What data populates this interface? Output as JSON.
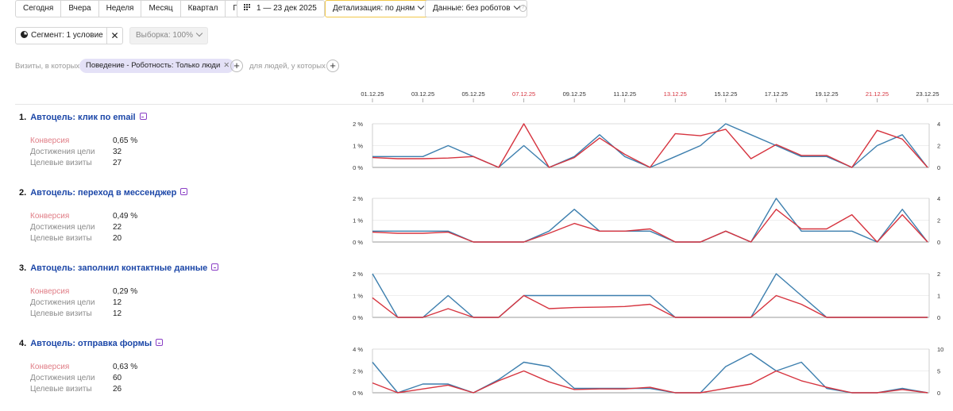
{
  "toolbar": {
    "periods": [
      "Сегодня",
      "Вчера",
      "Неделя",
      "Месяц",
      "Квартал",
      "Год"
    ],
    "date_range": "1 — 23 дек 2025",
    "detail": "Детализация: по дням",
    "data_filter": "Данные: без роботов",
    "help": "?"
  },
  "segment": {
    "label": "Сегмент: 1 условие",
    "sample": "Выборка: 100%"
  },
  "filters": {
    "visits_label": "Визиты, в которых",
    "tag": "Поведение - Роботность: Только люди",
    "people_label": "для людей, у которых"
  },
  "dates": [
    "01.12.25",
    "03.12.25",
    "05.12.25",
    "07.12.25",
    "09.12.25",
    "11.12.25",
    "13.12.25",
    "15.12.25",
    "17.12.25",
    "19.12.25",
    "21.12.25",
    "23.12.25"
  ],
  "weekend_dates": [
    "07.12.25",
    "13.12.25",
    "21.12.25"
  ],
  "stat_labels": {
    "conversion": "Конверсия",
    "reaches": "Достижения цели",
    "visits": "Целевые визиты"
  },
  "colors": {
    "red": "#d6343f",
    "blue": "#3d7fae",
    "tag_bg": "#e4e1f7",
    "link": "#1c47a8"
  },
  "goals": [
    {
      "num": "1.",
      "title": "Автоцель: клик по email",
      "conversion": "0,65 %",
      "reaches": "32",
      "visits": "27"
    },
    {
      "num": "2.",
      "title": "Автоцель: переход в мессенджер",
      "conversion": "0,49 %",
      "reaches": "22",
      "visits": "20"
    },
    {
      "num": "3.",
      "title": "Автоцель: заполнил контактные данные",
      "conversion": "0,29 %",
      "reaches": "12",
      "visits": "12"
    },
    {
      "num": "4.",
      "title": "Автоцель: отправка формы",
      "conversion": "0,63 %",
      "reaches": "60",
      "visits": "26"
    }
  ],
  "chart_data": [
    {
      "type": "line",
      "title": "Автоцель: клик по email",
      "x_days": [
        1,
        2,
        3,
        4,
        5,
        6,
        7,
        8,
        9,
        10,
        11,
        12,
        13,
        14,
        15,
        16,
        17,
        18,
        19,
        20,
        21,
        22,
        23
      ],
      "y_left_ticks": [
        "2 %",
        "1 %",
        "0 %"
      ],
      "y_left_range": [
        0,
        2
      ],
      "y_right_ticks": [
        "4",
        "2",
        "0"
      ],
      "y_right_range": [
        0,
        4
      ],
      "series": [
        {
          "axis": "left",
          "color": "#d6343f",
          "values": [
            0.45,
            0.4,
            0.4,
            0.43,
            0.5,
            0,
            2,
            0,
            0.45,
            1.35,
            0.6,
            0,
            1.55,
            1.45,
            1.75,
            0.4,
            1.05,
            0.55,
            0.55,
            0,
            1.7,
            1.3,
            0
          ]
        },
        {
          "axis": "right",
          "color": "#3d7fae",
          "values": [
            1,
            1,
            1,
            2,
            1,
            0,
            2,
            0,
            1,
            3,
            1,
            0,
            1,
            2,
            4,
            3,
            2,
            1,
            1,
            0,
            2,
            3,
            0
          ]
        }
      ]
    },
    {
      "type": "line",
      "title": "Автоцель: переход в мессенджер",
      "x_days": [
        1,
        2,
        3,
        4,
        5,
        6,
        7,
        8,
        9,
        10,
        11,
        12,
        13,
        14,
        15,
        16,
        17,
        18,
        19,
        20,
        21,
        22,
        23
      ],
      "y_left_ticks": [
        "2 %",
        "1 %",
        "0 %"
      ],
      "y_left_range": [
        0,
        2
      ],
      "y_right_ticks": [
        "4",
        "2",
        "0"
      ],
      "y_right_range": [
        0,
        4
      ],
      "series": [
        {
          "axis": "left",
          "color": "#d6343f",
          "values": [
            0.45,
            0.4,
            0.4,
            0.45,
            0,
            0,
            0,
            0.4,
            0.85,
            0.5,
            0.5,
            0.6,
            0,
            0,
            0.5,
            0,
            1.5,
            0.6,
            0.6,
            1.25,
            0,
            1.25,
            0
          ]
        },
        {
          "axis": "right",
          "color": "#3d7fae",
          "values": [
            1,
            1,
            1,
            1,
            0,
            0,
            0,
            1,
            3,
            1,
            1,
            1,
            0,
            0,
            1,
            0,
            4,
            1,
            1,
            1,
            0,
            3,
            0
          ]
        }
      ]
    },
    {
      "type": "line",
      "title": "Автоцель: заполнил контактные данные",
      "x_days": [
        1,
        2,
        3,
        4,
        5,
        6,
        7,
        8,
        9,
        10,
        11,
        12,
        13,
        14,
        15,
        16,
        17,
        18,
        19,
        20,
        21,
        22,
        23
      ],
      "y_left_ticks": [
        "2 %",
        "1 %",
        "0 %"
      ],
      "y_left_range": [
        0,
        2
      ],
      "y_right_ticks": [
        "2",
        "1",
        "0"
      ],
      "y_right_range": [
        0,
        2
      ],
      "series": [
        {
          "axis": "left",
          "color": "#d6343f",
          "values": [
            0.9,
            0,
            0,
            0.4,
            0,
            0,
            1,
            0.4,
            0.45,
            0.47,
            0.5,
            0.6,
            0,
            0,
            0,
            0,
            1,
            0.6,
            0,
            0,
            0,
            0,
            0
          ]
        },
        {
          "axis": "right",
          "color": "#3d7fae",
          "values": [
            2,
            0,
            0,
            1,
            0,
            0,
            1,
            1,
            1,
            1,
            1,
            1,
            0,
            0,
            0,
            0,
            2,
            1,
            0,
            0,
            0,
            0,
            0
          ]
        }
      ]
    },
    {
      "type": "line",
      "title": "Автоцель: отправка формы",
      "x_days": [
        1,
        2,
        3,
        4,
        5,
        6,
        7,
        8,
        9,
        10,
        11,
        12,
        13,
        14,
        15,
        16,
        17,
        18,
        19,
        20,
        21,
        22,
        23
      ],
      "y_left_ticks": [
        "4 %",
        "2 %",
        "0 %"
      ],
      "y_left_range": [
        0,
        4
      ],
      "y_right_ticks": [
        "10",
        "5",
        "0"
      ],
      "y_right_range": [
        0,
        10
      ],
      "series": [
        {
          "axis": "left",
          "color": "#d6343f",
          "values": [
            0.9,
            0,
            0.35,
            0.7,
            0,
            1.1,
            2,
            1,
            0.3,
            0.35,
            0.35,
            0.5,
            0,
            0,
            0.4,
            0.8,
            2,
            1.1,
            0.5,
            0,
            0,
            0.3,
            0
          ]
        },
        {
          "axis": "right",
          "color": "#3d7fae",
          "values": [
            7,
            0,
            2,
            2,
            0,
            3,
            7,
            6,
            1,
            1,
            1,
            1,
            0,
            0,
            6,
            9,
            5,
            7,
            1,
            0,
            0,
            1,
            0
          ]
        }
      ]
    }
  ]
}
